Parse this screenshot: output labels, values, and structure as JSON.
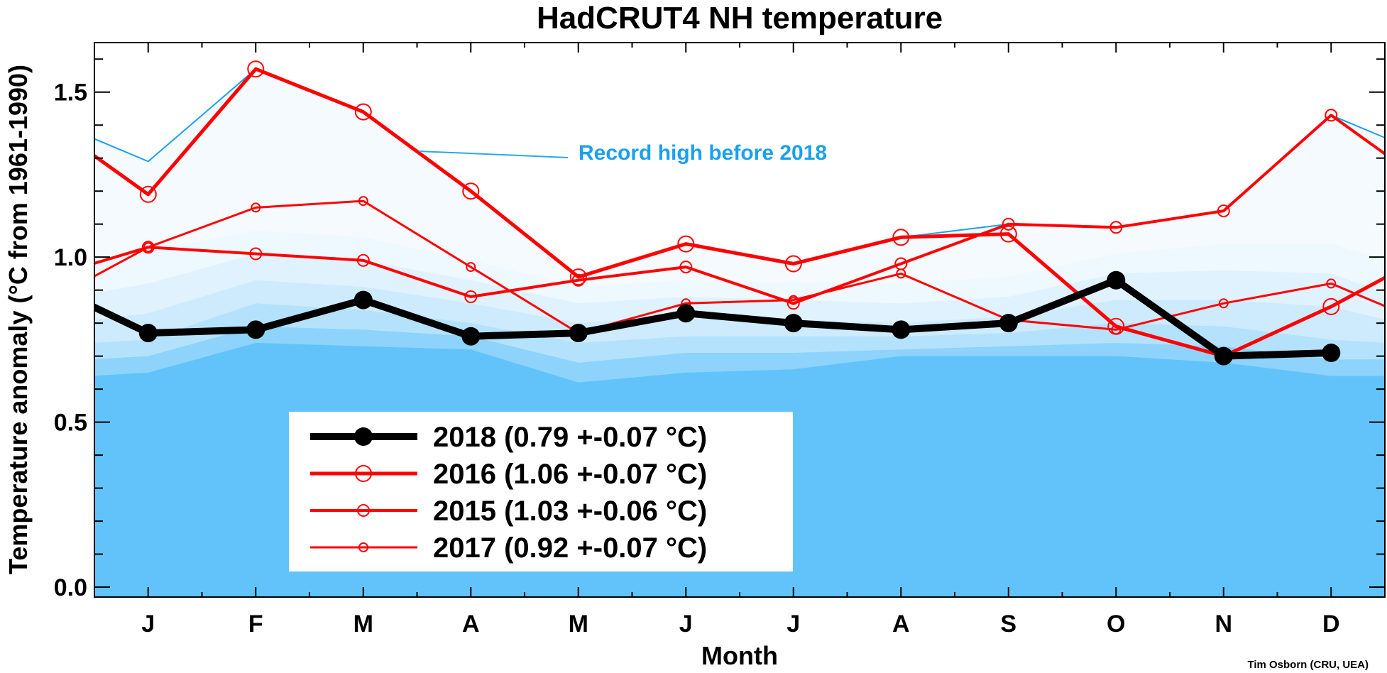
{
  "chart_data": {
    "type": "line",
    "title": "HadCRUT4 NH temperature",
    "xlabel": "Month",
    "ylabel": "Temperature anomaly (°C from 1961-1990)",
    "categories": [
      "J",
      "F",
      "M",
      "A",
      "M",
      "J",
      "J",
      "A",
      "S",
      "O",
      "N",
      "D"
    ],
    "yticks": [
      "0.0",
      "0.5",
      "1.0",
      "1.5"
    ],
    "ylim": [
      -0.03,
      1.65
    ],
    "grid": false,
    "credit": "Tim Osborn (CRU, UEA)",
    "annotation": "Record high before 2018",
    "record_high": [
      1.29,
      1.57,
      1.44,
      1.2,
      0.94,
      1.04,
      0.98,
      1.06,
      1.1,
      1.09,
      1.14,
      1.43
    ],
    "record_high_edges": [
      1.36,
      1.36
    ],
    "bands": [
      {
        "color": "#62c3fb",
        "values": [
          0.65,
          0.74,
          0.73,
          0.72,
          0.62,
          0.65,
          0.66,
          0.7,
          0.7,
          0.7,
          0.68,
          0.64
        ],
        "edges": [
          0.64,
          0.64
        ]
      },
      {
        "color": "#8dd3fc",
        "values": [
          0.7,
          0.79,
          0.78,
          0.76,
          0.68,
          0.71,
          0.71,
          0.72,
          0.73,
          0.74,
          0.73,
          0.69
        ],
        "edges": [
          0.69,
          0.69
        ]
      },
      {
        "color": "#b4e2fd",
        "values": [
          0.75,
          0.86,
          0.84,
          0.8,
          0.74,
          0.76,
          0.76,
          0.76,
          0.77,
          0.8,
          0.79,
          0.75
        ],
        "edges": [
          0.74,
          0.74
        ]
      },
      {
        "color": "#cdebfd",
        "values": [
          0.83,
          0.93,
          0.91,
          0.86,
          0.8,
          0.82,
          0.81,
          0.8,
          0.82,
          0.87,
          0.87,
          0.85
        ],
        "edges": [
          0.81,
          0.81
        ]
      },
      {
        "color": "#e0f2fe",
        "values": [
          0.92,
          1.01,
          0.99,
          0.93,
          0.86,
          0.88,
          0.87,
          0.86,
          0.88,
          0.95,
          0.96,
          0.95
        ],
        "edges": [
          0.89,
          0.89
        ]
      },
      {
        "color": "#eef8ff",
        "values": [
          1.02,
          1.08,
          1.06,
          0.99,
          0.91,
          0.93,
          0.92,
          0.92,
          0.94,
          1.01,
          1.04,
          1.04
        ],
        "edges": [
          0.99,
          0.99
        ]
      }
    ],
    "series": [
      {
        "name": "2018 (0.79 +-0.07 °C)",
        "color": "#000000",
        "width": 10,
        "marker": "filled",
        "r": 13,
        "values": [
          0.77,
          0.78,
          0.87,
          0.76,
          0.77,
          0.83,
          0.8,
          0.78,
          0.8,
          0.93,
          0.7,
          0.71
        ],
        "edges": [
          0.85,
          null
        ]
      },
      {
        "name": "2016 (1.06 +-0.07 °C)",
        "color": "#ff0000",
        "width": 5,
        "marker": "open",
        "r": 11,
        "values": [
          1.19,
          1.57,
          1.44,
          1.2,
          0.94,
          1.04,
          0.98,
          1.06,
          1.07,
          0.79,
          0.7,
          0.85
        ],
        "edges": [
          1.31,
          0.94
        ]
      },
      {
        "name": "2015 (1.03 +-0.06 °C)",
        "color": "#ff0000",
        "width": 4,
        "marker": "open",
        "r": 8,
        "values": [
          1.03,
          1.01,
          0.99,
          0.88,
          0.93,
          0.97,
          0.86,
          0.98,
          1.1,
          1.09,
          1.14,
          1.43
        ],
        "edges": [
          0.98,
          1.31
        ]
      },
      {
        "name": "2017 (0.92 +-0.07 °C)",
        "color": "#ff0000",
        "width": 3,
        "marker": "open",
        "r": 6,
        "values": [
          1.03,
          1.15,
          1.17,
          0.97,
          0.77,
          0.86,
          0.87,
          0.95,
          0.81,
          0.78,
          0.86,
          0.92
        ],
        "edges": [
          0.94,
          0.85
        ]
      }
    ]
  }
}
